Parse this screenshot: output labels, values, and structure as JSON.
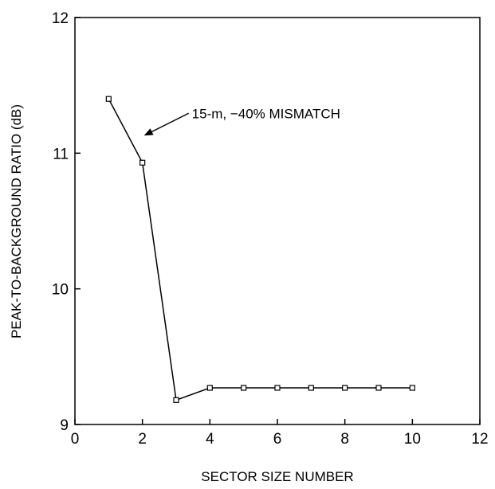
{
  "chart_data": {
    "type": "line",
    "xlabel": "SECTOR SIZE NUMBER",
    "ylabel": "PEAK-TO-BACKGROUND RATIO (dB)",
    "xlim": [
      0,
      12
    ],
    "ylim": [
      9,
      12
    ],
    "xticks": [
      0,
      2,
      4,
      6,
      8,
      10,
      12
    ],
    "yticks": [
      9,
      10,
      11,
      12
    ],
    "grid": false,
    "series": [
      {
        "x": [
          1,
          2,
          3,
          4,
          5,
          6,
          7,
          8,
          9,
          10
        ],
        "y": [
          11.4,
          10.93,
          9.18,
          9.27,
          9.27,
          9.27,
          9.27,
          9.27,
          9.27,
          9.27
        ]
      }
    ],
    "annotations": [
      {
        "text": "15-m, −40% MISMATCH",
        "x": 2,
        "y": 10.93
      }
    ],
    "colors": {
      "line": "#000000",
      "marker_fill": "#ffffff"
    }
  }
}
